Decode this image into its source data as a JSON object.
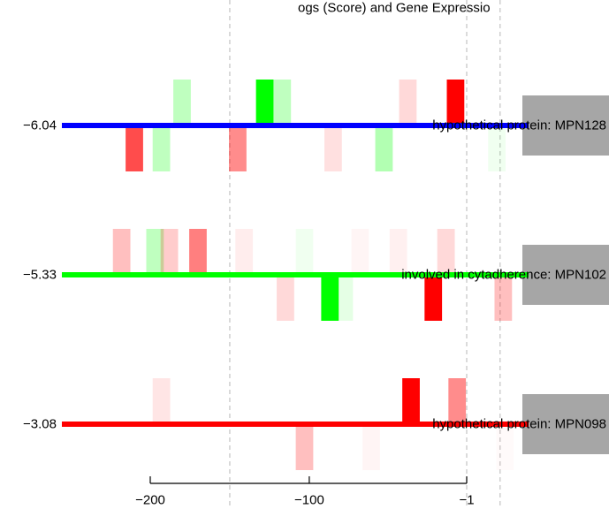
{
  "chart_data": {
    "type": "bar",
    "title_fragment": "ogs (Score) and Gene Expressio",
    "x_axis": {
      "range": [
        -243,
        43
      ],
      "ticks": [
        -200,
        -100,
        -1
      ],
      "tick_labels": [
        "−200",
        "−100",
        "−1"
      ],
      "dashed_reference_lines": [
        -150,
        -1,
        20
      ]
    },
    "bar_width": 11,
    "bar_height_units": 0.3,
    "tracks": [
      {
        "score_label": "−6.04",
        "line_color": "#0000ff",
        "gene_label": "hypothetical protein: MPN128",
        "bars": [
          {
            "x": -180,
            "dir": "up",
            "color": "#00ff00",
            "intensity": 0.25
          },
          {
            "x": -128,
            "dir": "up",
            "color": "#00ff00",
            "intensity": 1.0
          },
          {
            "x": -117,
            "dir": "up",
            "color": "#00ff00",
            "intensity": 0.25
          },
          {
            "x": -38,
            "dir": "up",
            "color": "#ff0000",
            "intensity": 0.15
          },
          {
            "x": -8,
            "dir": "up",
            "color": "#ff0000",
            "intensity": 1.0
          },
          {
            "x": -210,
            "dir": "down",
            "color": "#ff0000",
            "intensity": 0.7
          },
          {
            "x": -193,
            "dir": "down",
            "color": "#00ff00",
            "intensity": 0.25
          },
          {
            "x": -145,
            "dir": "down",
            "color": "#ff0000",
            "intensity": 0.45
          },
          {
            "x": -85,
            "dir": "down",
            "color": "#ff0000",
            "intensity": 0.12
          },
          {
            "x": -53,
            "dir": "down",
            "color": "#00ff00",
            "intensity": 0.3
          },
          {
            "x": 18,
            "dir": "down",
            "color": "#00ff00",
            "intensity": 0.06
          }
        ]
      },
      {
        "score_label": "−5.33",
        "line_color": "#00ff00",
        "gene_label": "involved in cytadherence: MPN102",
        "bars": [
          {
            "x": -218,
            "dir": "up",
            "color": "#ff0000",
            "intensity": 0.25
          },
          {
            "x": -197,
            "dir": "up",
            "color": "#00ff00",
            "intensity": 0.25
          },
          {
            "x": -188,
            "dir": "up",
            "color": "#ff0000",
            "intensity": 0.2
          },
          {
            "x": -170,
            "dir": "up",
            "color": "#ff0000",
            "intensity": 0.5
          },
          {
            "x": -141,
            "dir": "up",
            "color": "#ff0000",
            "intensity": 0.07
          },
          {
            "x": -103,
            "dir": "up",
            "color": "#00ff00",
            "intensity": 0.06
          },
          {
            "x": -68,
            "dir": "up",
            "color": "#ff0000",
            "intensity": 0.04
          },
          {
            "x": -44,
            "dir": "up",
            "color": "#ff0000",
            "intensity": 0.06
          },
          {
            "x": -14,
            "dir": "up",
            "color": "#ff0000",
            "intensity": 0.15
          },
          {
            "x": -115,
            "dir": "down",
            "color": "#ff0000",
            "intensity": 0.15
          },
          {
            "x": -87,
            "dir": "down",
            "color": "#00ff00",
            "intensity": 1.0
          },
          {
            "x": -78,
            "dir": "down",
            "color": "#00ff00",
            "intensity": 0.1
          },
          {
            "x": -22,
            "dir": "down",
            "color": "#ff0000",
            "intensity": 1.0
          },
          {
            "x": 22,
            "dir": "down",
            "color": "#ff0000",
            "intensity": 0.25
          }
        ]
      },
      {
        "score_label": "−3.08",
        "line_color": "#ff0000",
        "gene_label": "hypothetical protein: MPN098",
        "bars": [
          {
            "x": -193,
            "dir": "up",
            "color": "#ff0000",
            "intensity": 0.1
          },
          {
            "x": -36,
            "dir": "up",
            "color": "#ff0000",
            "intensity": 1.0
          },
          {
            "x": -7,
            "dir": "up",
            "color": "#ff0000",
            "intensity": 0.45
          },
          {
            "x": -103,
            "dir": "down",
            "color": "#ff0000",
            "intensity": 0.25
          },
          {
            "x": -61,
            "dir": "down",
            "color": "#ff0000",
            "intensity": 0.04
          },
          {
            "x": 23,
            "dir": "down",
            "color": "#ff0000",
            "intensity": 0.02
          }
        ]
      }
    ],
    "label_box_color": "#a6a6a6"
  }
}
